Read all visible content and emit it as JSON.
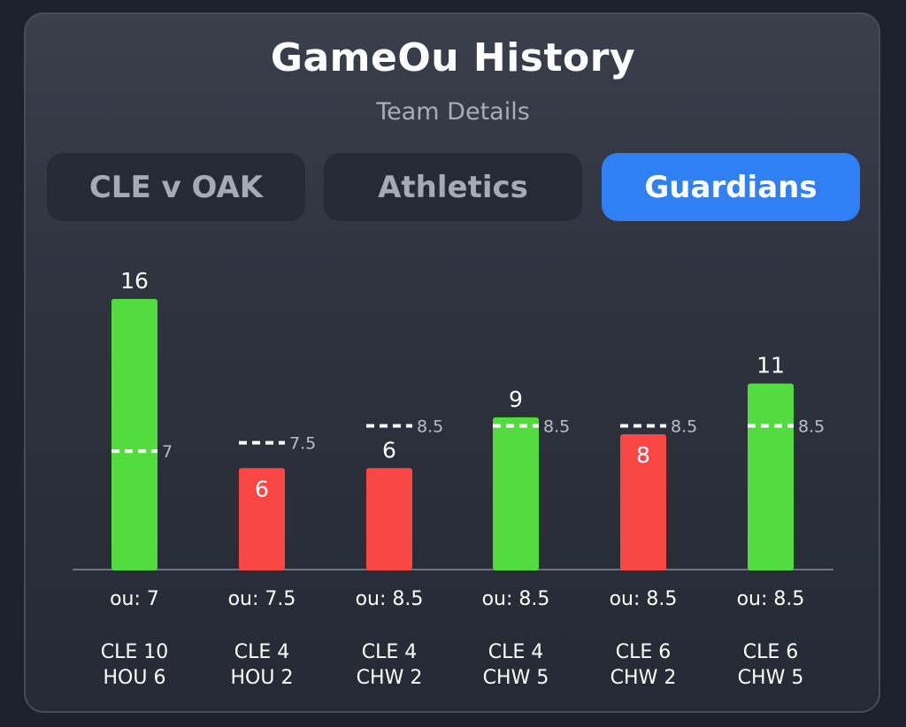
{
  "header": {
    "title": "GameOu History",
    "subtitle": "Team Details"
  },
  "tabs": [
    {
      "label": "CLE v OAK",
      "active": false
    },
    {
      "label": "Athletics",
      "active": false
    },
    {
      "label": "Guardians",
      "active": true
    }
  ],
  "colors": {
    "over": "#52dc3f",
    "under": "#fb4646",
    "tab_active": "#2f80f3",
    "axis": "#6c7486"
  },
  "chart_data": {
    "type": "bar",
    "ylim": [
      0,
      16
    ],
    "grid": false,
    "categories": [
      "CLE 10\nHOU 6",
      "CLE 4\nHOU 2",
      "CLE 4\nCHW 2",
      "CLE 4\nCHW 5",
      "CLE 6\nCHW 2",
      "CLE 6\nCHW 5"
    ],
    "games": [
      {
        "score_line1": "CLE 10",
        "score_line2": "HOU 6",
        "total": 16,
        "total_label": "16",
        "ou": 7,
        "ou_label": "7",
        "ou_text": "ou: 7",
        "result": "over"
      },
      {
        "score_line1": "CLE 4",
        "score_line2": "HOU 2",
        "total": 6,
        "total_label": "6",
        "ou": 7.5,
        "ou_label": "7.5",
        "ou_text": "ou: 7.5",
        "result": "under"
      },
      {
        "score_line1": "CLE 4",
        "score_line2": "CHW 2",
        "total": 6,
        "total_label": "6",
        "ou": 8.5,
        "ou_label": "8.5",
        "ou_text": "ou: 8.5",
        "result": "under"
      },
      {
        "score_line1": "CLE 4",
        "score_line2": "CHW 5",
        "total": 9,
        "total_label": "9",
        "ou": 8.5,
        "ou_label": "8.5",
        "ou_text": "ou: 8.5",
        "result": "over"
      },
      {
        "score_line1": "CLE 6",
        "score_line2": "CHW 2",
        "total": 8,
        "total_label": "8",
        "ou": 8.5,
        "ou_label": "8.5",
        "ou_text": "ou: 8.5",
        "result": "under"
      },
      {
        "score_line1": "CLE 6",
        "score_line2": "CHW 5",
        "total": 11,
        "total_label": "11",
        "ou": 8.5,
        "ou_label": "8.5",
        "ou_text": "ou: 8.5",
        "result": "over"
      }
    ]
  }
}
